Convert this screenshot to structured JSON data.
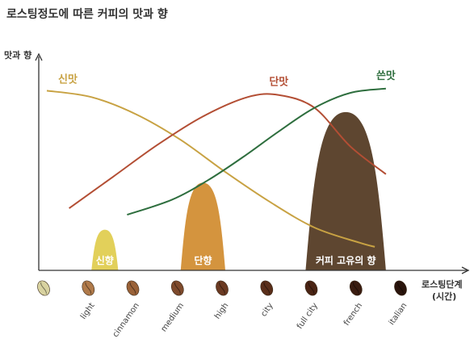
{
  "chart_data": {
    "type": "line",
    "title": "로스팅정도에 따른 커피의 맛과 향",
    "ylabel": "맛과 향",
    "xlabel": "로스팅단계",
    "xlabel_sub": "(시간)",
    "categories": [
      "",
      "light",
      "cinnamon",
      "medium",
      "high",
      "city",
      "full city",
      "french",
      "italian"
    ],
    "bean_colors": [
      "#d8d2a0",
      "#b07a4a",
      "#9a6238",
      "#7e4a2c",
      "#6b3a22",
      "#5a2e1a",
      "#4a2414",
      "#3a1c10",
      "#2a140c"
    ],
    "x_range": [
      0,
      8
    ],
    "y_range": [
      0,
      100
    ],
    "grid": false,
    "series": [
      {
        "name": "신맛",
        "color": "#c8a243",
        "x": [
          0,
          1,
          2,
          3,
          4,
          5,
          6,
          7,
          7.35
        ],
        "y": [
          84,
          81,
          73,
          61,
          46,
          32,
          20,
          13,
          11
        ]
      },
      {
        "name": "단맛",
        "color": "#b34e34",
        "x": [
          0.5,
          1.5,
          2.5,
          3.5,
          4.5,
          5.2,
          6,
          6.8,
          7.6
        ],
        "y": [
          29,
          44,
          59,
          72,
          81,
          82,
          76,
          58,
          45
        ]
      },
      {
        "name": "쓴맛",
        "color": "#2e6e3e",
        "x": [
          1.8,
          2.8,
          3.6,
          4.4,
          5.2,
          6,
          6.8,
          7.6
        ],
        "y": [
          26,
          33,
          42,
          53,
          65,
          76,
          83,
          85
        ]
      }
    ],
    "aroma_areas": [
      {
        "name": "신향",
        "color": "#e2d05a",
        "start": 1.0,
        "end": 1.6,
        "peak": 19
      },
      {
        "name": "단향",
        "color": "#d4943e",
        "start": 3.0,
        "end": 4.0,
        "peak": 41
      },
      {
        "name": "커피 고유의 향",
        "color": "#5e4630",
        "start": 5.8,
        "end": 7.6,
        "peak": 74
      }
    ]
  }
}
